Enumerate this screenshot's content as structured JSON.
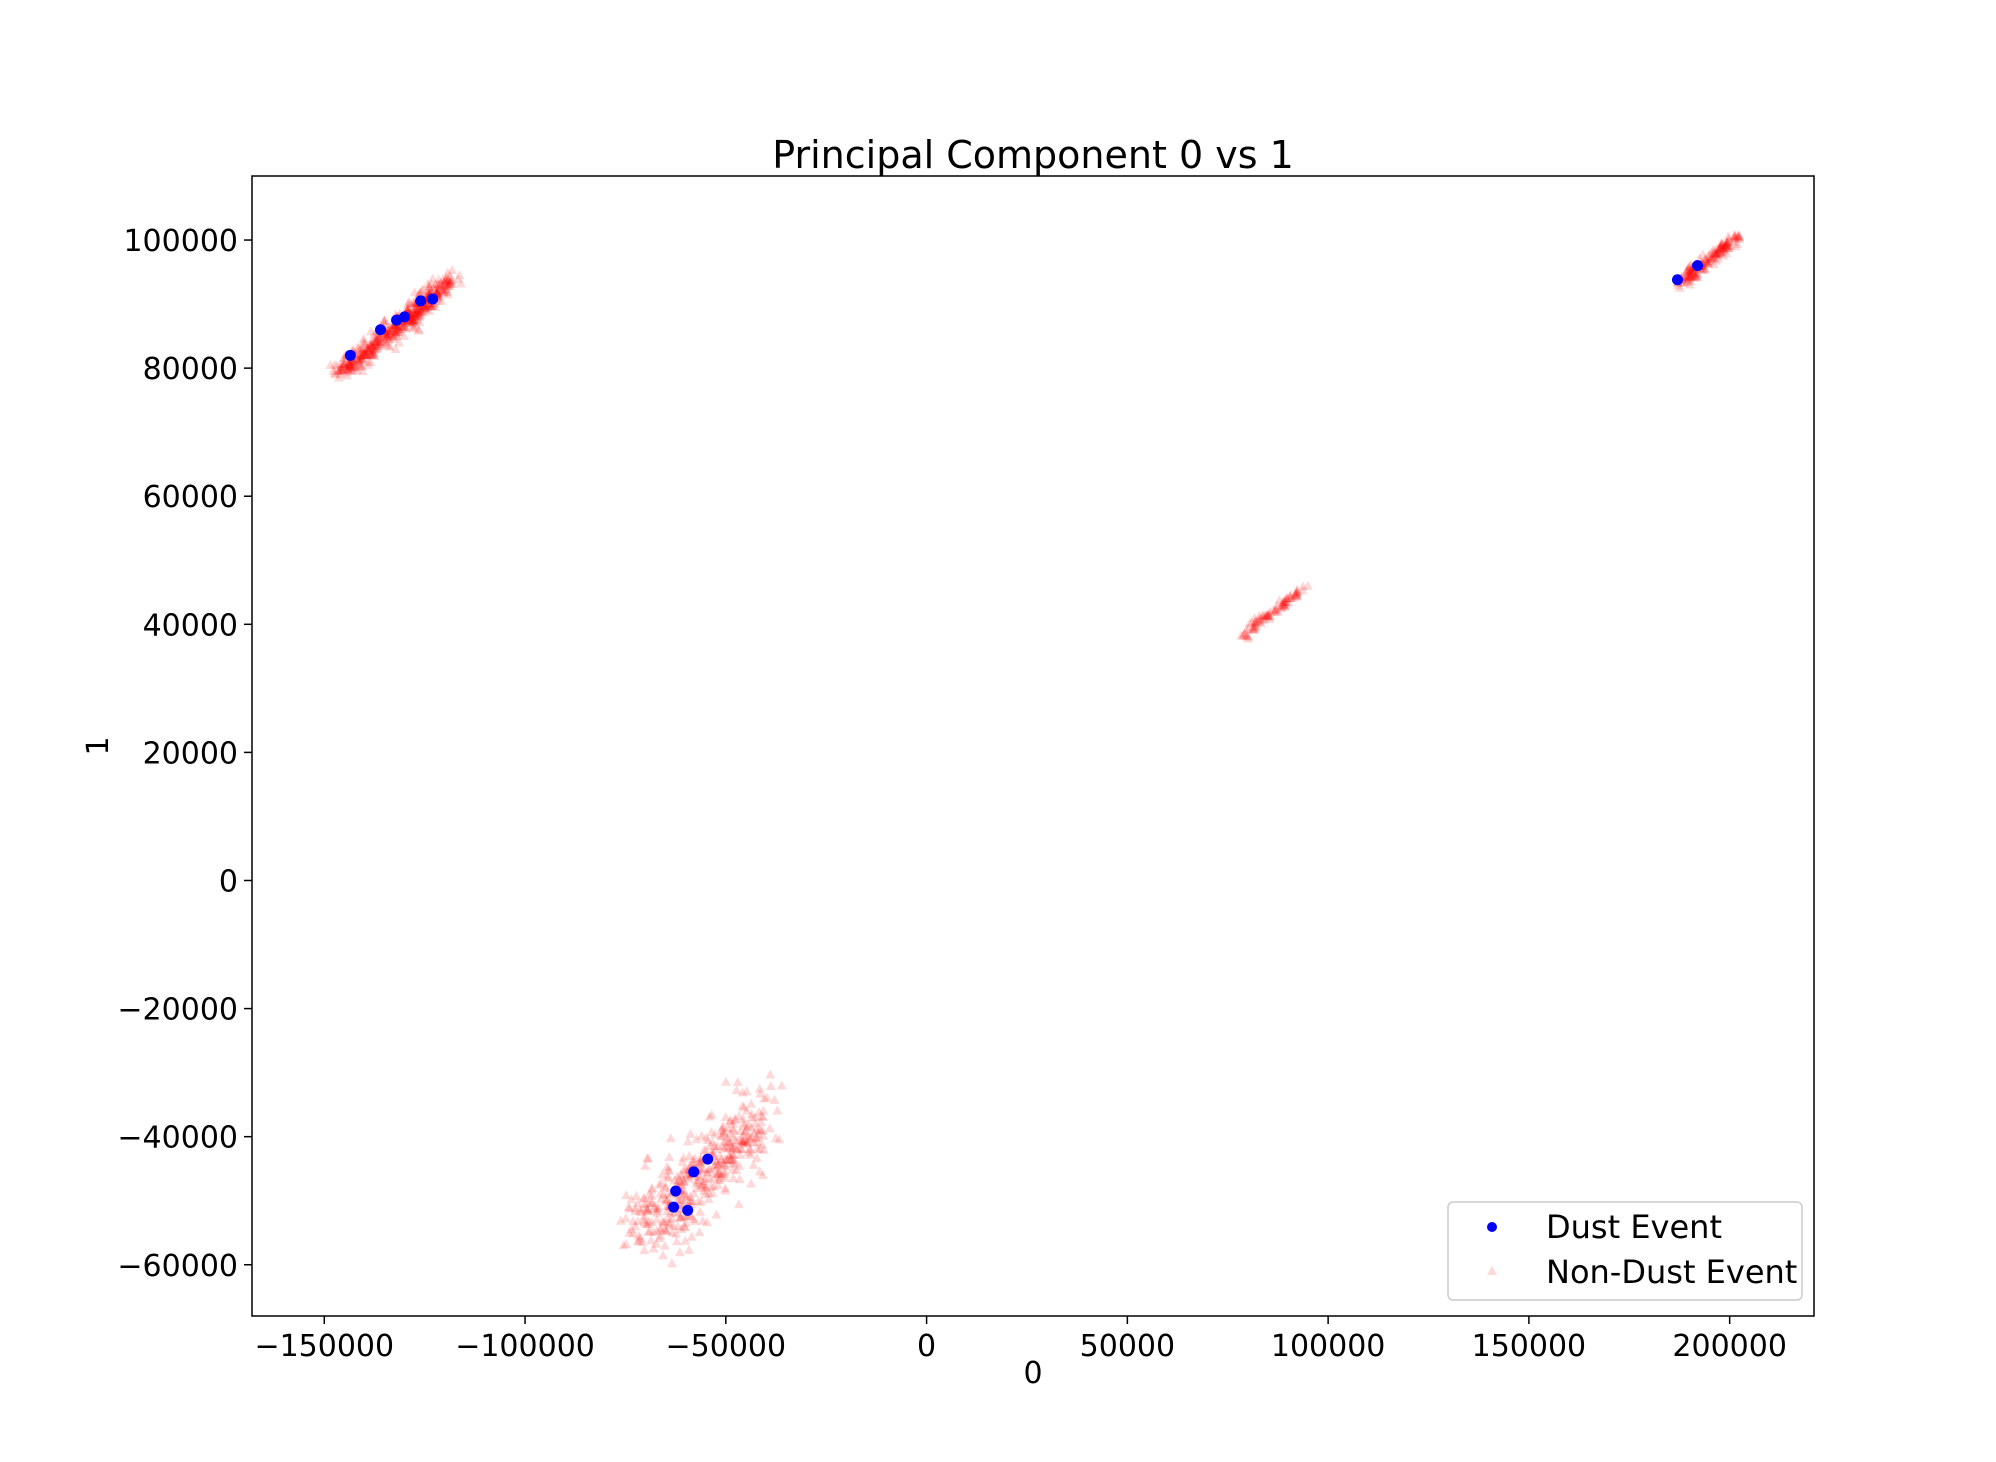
{
  "chart_data": {
    "type": "scatter",
    "title": "Principal Component 0 vs 1",
    "xlabel": "0",
    "ylabel": "1",
    "xlim": [
      -168000,
      221000
    ],
    "ylim": [
      -68000,
      110000
    ],
    "x_ticks": [
      -150000,
      -100000,
      -50000,
      0,
      50000,
      100000,
      150000,
      200000
    ],
    "x_tick_labels": [
      "−150000",
      "−100000",
      "−50000",
      "0",
      "50000",
      "100000",
      "150000",
      "200000"
    ],
    "y_ticks": [
      -60000,
      -40000,
      -20000,
      0,
      20000,
      40000,
      60000,
      80000,
      100000
    ],
    "y_tick_labels": [
      "−60000",
      "−40000",
      "−20000",
      "0",
      "20000",
      "40000",
      "60000",
      "80000",
      "100000"
    ],
    "grid": false,
    "legend_position": "lower-right",
    "colors": {
      "dust": "#0000ff",
      "non_dust": "#ff0000"
    },
    "series": [
      {
        "name": "Dust Event",
        "marker": "circle",
        "points": [
          [
            -143500,
            82000
          ],
          [
            -136000,
            86000
          ],
          [
            -132000,
            87500
          ],
          [
            -130000,
            88000
          ],
          [
            -126000,
            90500
          ],
          [
            -123000,
            90800
          ],
          [
            187000,
            93800
          ],
          [
            192000,
            96000
          ],
          [
            -63000,
            -51000
          ],
          [
            -62500,
            -48500
          ],
          [
            -59500,
            -51500
          ],
          [
            -58000,
            -45500
          ],
          [
            -54500,
            -43500
          ]
        ]
      },
      {
        "name": "Non-Dust Event",
        "marker": "triangle",
        "opacity": 0.15,
        "clusters": [
          {
            "from": [
              -149000,
              77500
            ],
            "to": [
              -116000,
              95000
            ],
            "count": 520,
            "spread": 900
          },
          {
            "from": [
              186000,
              92500
            ],
            "to": [
              204000,
              101500
            ],
            "count": 170,
            "spread": 500
          },
          {
            "from": [
              77000,
              37500
            ],
            "to": [
              95000,
              46500
            ],
            "count": 90,
            "spread": 400
          },
          {
            "from": [
              -74000,
              -57000
            ],
            "to": [
              -38000,
              -35000
            ],
            "count": 420,
            "spread": 3000
          }
        ]
      }
    ]
  }
}
